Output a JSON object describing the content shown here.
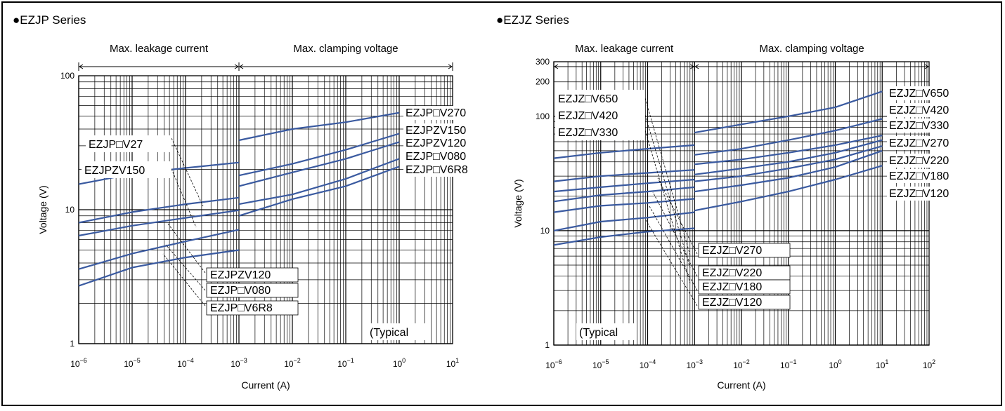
{
  "chart_data": [
    {
      "type": "line",
      "title": "●EZJP Series",
      "xlabel": "Current (A)",
      "ylabel": "Voltage (V)",
      "xscale": "log",
      "yscale": "log",
      "xlim": [
        1e-06,
        10
      ],
      "ylim": [
        1,
        100
      ],
      "grid": true,
      "x_ticks": [
        {
          "value": 1e-06,
          "base": "10",
          "exp": "−6"
        },
        {
          "value": 1e-05,
          "base": "10",
          "exp": "−5"
        },
        {
          "value": 0.0001,
          "base": "10",
          "exp": "−4"
        },
        {
          "value": 0.001,
          "base": "10",
          "exp": "−3"
        },
        {
          "value": 0.01,
          "base": "10",
          "exp": "−2"
        },
        {
          "value": 0.1,
          "base": "10",
          "exp": "−1"
        },
        {
          "value": 1,
          "base": "10",
          "exp": "0"
        },
        {
          "value": 10,
          "base": "10",
          "exp": "1"
        }
      ],
      "y_ticks": [
        {
          "value": 1,
          "label": "1"
        },
        {
          "value": 10,
          "label": "10"
        },
        {
          "value": 100,
          "label": "100"
        }
      ],
      "regions": [
        {
          "label": "Max. leakage current",
          "from": 1e-06,
          "to": 0.001
        },
        {
          "label": "Max. clamping voltage",
          "from": 0.001,
          "to": 10
        }
      ],
      "note": "(Typical",
      "series": [
        {
          "name": "EZJP□V27",
          "x": [
            1e-06,
            1e-05,
            0.0001,
            0.001
          ],
          "y": [
            8.0,
            9.6,
            11.0,
            12.3
          ]
        },
        {
          "name": "EZJPZV150",
          "x": [
            1e-06,
            1e-05,
            0.0001,
            0.001
          ],
          "y": [
            6.4,
            7.6,
            8.7,
            9.9
          ]
        },
        {
          "name": "EZJPZV120",
          "x": [
            1e-06,
            1e-05,
            0.0001,
            0.001
          ],
          "y": [
            3.6,
            4.7,
            5.8,
            7.1
          ]
        },
        {
          "name": "EZJP□V080",
          "x": [
            1e-06,
            1e-05,
            0.0001,
            0.001
          ],
          "y": [
            2.7,
            3.7,
            4.4,
            5.0
          ]
        },
        {
          "name": "EZJP□V6R8",
          "x": [
            1e-06,
            1e-05,
            0.0001,
            0.001
          ],
          "y": [
            15.5,
            18.5,
            20.5,
            22.5
          ]
        },
        {
          "name": "EZJP□V270",
          "x": [
            0.001,
            0.01,
            0.1,
            1
          ],
          "y": [
            33,
            40,
            45,
            53
          ]
        },
        {
          "name": "EZJPZV150",
          "x": [
            0.001,
            0.01,
            0.1,
            1
          ],
          "y": [
            18,
            22,
            28,
            37
          ]
        },
        {
          "name": "EZJPZV120",
          "x": [
            0.001,
            0.01,
            0.1,
            1
          ],
          "y": [
            15,
            19,
            24,
            32
          ]
        },
        {
          "name": "EZJP□V080",
          "x": [
            0.001,
            0.01,
            0.1,
            1
          ],
          "y": [
            11,
            13,
            17,
            24
          ]
        },
        {
          "name": "EZJP□V6R8",
          "x": [
            0.001,
            0.01,
            0.1,
            1
          ],
          "y": [
            9,
            12,
            15,
            21
          ]
        }
      ],
      "annotations": [
        {
          "text": "EZJP□V27",
          "side": "left"
        },
        {
          "text": "EZJPZV150",
          "side": "left"
        },
        {
          "text": "EZJPZV120",
          "side": "bottom"
        },
        {
          "text": "EZJP□V080",
          "side": "bottom"
        },
        {
          "text": "EZJP□V6R8",
          "side": "bottom"
        },
        {
          "text": "EZJP□V270",
          "side": "right"
        },
        {
          "text": "EZJPZV150",
          "side": "right"
        },
        {
          "text": "EZJPZV120",
          "side": "right"
        },
        {
          "text": "EZJP□V080",
          "side": "right"
        },
        {
          "text": "EZJP□V6R8",
          "side": "right"
        }
      ]
    },
    {
      "type": "line",
      "title": "●EZJZ Series",
      "xlabel": "Current (A)",
      "ylabel": "Voltage (V)",
      "xscale": "log",
      "yscale": "log",
      "xlim": [
        1e-06,
        100
      ],
      "ylim": [
        1,
        300
      ],
      "grid": true,
      "x_ticks": [
        {
          "value": 1e-06,
          "base": "10",
          "exp": "−6"
        },
        {
          "value": 1e-05,
          "base": "10",
          "exp": "−5"
        },
        {
          "value": 0.0001,
          "base": "10",
          "exp": "−4"
        },
        {
          "value": 0.001,
          "base": "10",
          "exp": "−3"
        },
        {
          "value": 0.01,
          "base": "10",
          "exp": "−2"
        },
        {
          "value": 0.1,
          "base": "10",
          "exp": "−1"
        },
        {
          "value": 1,
          "base": "10",
          "exp": "0"
        },
        {
          "value": 10,
          "base": "10",
          "exp": "1"
        },
        {
          "value": 100,
          "base": "10",
          "exp": "2"
        }
      ],
      "y_ticks": [
        {
          "value": 1,
          "label": "1"
        },
        {
          "value": 10,
          "label": "10"
        },
        {
          "value": 100,
          "label": "100"
        },
        {
          "value": 200,
          "label": "200"
        },
        {
          "value": 300,
          "label": "300"
        }
      ],
      "regions": [
        {
          "label": "Max. leakage current",
          "from": 1e-06,
          "to": 0.001
        },
        {
          "label": "Max. clamping voltage",
          "from": 0.001,
          "to": 100
        }
      ],
      "note": "(Typical",
      "series": [
        {
          "name": "EZJZ□V650",
          "x": [
            1e-06,
            1e-05,
            0.0001,
            0.001
          ],
          "y": [
            43,
            48,
            52,
            56
          ]
        },
        {
          "name": "EZJZ□V420",
          "x": [
            1e-06,
            1e-05,
            0.0001,
            0.001
          ],
          "y": [
            27,
            30,
            32,
            34
          ]
        },
        {
          "name": "EZJZ□V330",
          "x": [
            1e-06,
            1e-05,
            0.0001,
            0.001
          ],
          "y": [
            22,
            24,
            26,
            28
          ]
        },
        {
          "name": "EZJZ□V270",
          "x": [
            1e-06,
            1e-05,
            0.0001,
            0.001
          ],
          "y": [
            18,
            20.5,
            22,
            24
          ]
        },
        {
          "name": "EZJZ□V220",
          "x": [
            1e-06,
            1e-05,
            0.0001,
            0.001
          ],
          "y": [
            14.5,
            16.5,
            17.5,
            19
          ]
        },
        {
          "name": "EZJZ□V180",
          "x": [
            1e-06,
            1e-05,
            0.0001,
            0.001
          ],
          "y": [
            10,
            12,
            13,
            14.5
          ]
        },
        {
          "name": "EZJZ□V120",
          "x": [
            1e-06,
            1e-05,
            0.0001,
            0.001
          ],
          "y": [
            7.5,
            8.8,
            9.8,
            10.5
          ]
        },
        {
          "name": "EZJZ□V650",
          "x": [
            0.001,
            0.01,
            0.1,
            1,
            10
          ],
          "y": [
            72,
            85,
            100,
            120,
            165
          ]
        },
        {
          "name": "EZJZ□V420",
          "x": [
            0.001,
            0.01,
            0.1,
            1,
            10
          ],
          "y": [
            46,
            52,
            62,
            75,
            95
          ]
        },
        {
          "name": "EZJZ□V330",
          "x": [
            0.001,
            0.01,
            0.1,
            1,
            10
          ],
          "y": [
            38,
            42,
            48,
            56,
            68
          ]
        },
        {
          "name": "EZJZ□V270",
          "x": [
            0.001,
            0.01,
            0.1,
            1,
            10
          ],
          "y": [
            31,
            35,
            40,
            48,
            62
          ]
        },
        {
          "name": "EZJZ□V220",
          "x": [
            0.001,
            0.01,
            0.1,
            1,
            10
          ],
          "y": [
            27,
            30,
            35,
            42,
            55
          ]
        },
        {
          "name": "EZJZ□V180",
          "x": [
            0.001,
            0.01,
            0.1,
            1,
            10
          ],
          "y": [
            22,
            25,
            29,
            36,
            50
          ]
        },
        {
          "name": "EZJZ□V120",
          "x": [
            0.001,
            0.01,
            0.1,
            1,
            10
          ],
          "y": [
            15,
            18,
            22,
            28,
            37
          ]
        }
      ],
      "annotations": [
        {
          "text": "EZJZ□V650",
          "side": "left"
        },
        {
          "text": "EZJZ□V420",
          "side": "left"
        },
        {
          "text": "EZJZ□V330",
          "side": "left"
        },
        {
          "text": "EZJZ□V270",
          "side": "bottom"
        },
        {
          "text": "EZJZ□V220",
          "side": "bottom"
        },
        {
          "text": "EZJZ□V180",
          "side": "bottom"
        },
        {
          "text": "EZJZ□V120",
          "side": "bottom"
        },
        {
          "text": "EZJZ□V650",
          "side": "right"
        },
        {
          "text": "EZJZ□V420",
          "side": "right"
        },
        {
          "text": "EZJZ□V330",
          "side": "right"
        },
        {
          "text": "EZJZ□V270",
          "side": "right"
        },
        {
          "text": "EZJZ□V220",
          "side": "right"
        },
        {
          "text": "EZJZ□V180",
          "side": "right"
        },
        {
          "text": "EZJZ□V120",
          "side": "right"
        }
      ]
    }
  ],
  "colors": {
    "series_line": "#3a5aa0",
    "grid": "#000000",
    "leader": "#000000"
  }
}
